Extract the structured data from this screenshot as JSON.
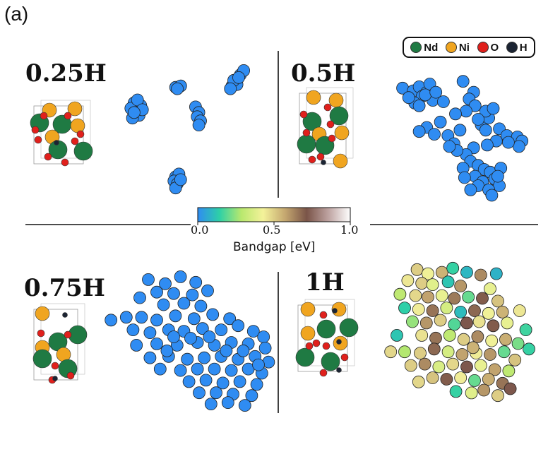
{
  "panel_label": "(a)",
  "legend": [
    {
      "label": "Nd",
      "color": "#1f7a43",
      "icon": "nd-atom-icon"
    },
    {
      "label": "Ni",
      "color": "#f0a520",
      "icon": "ni-atom-icon"
    },
    {
      "label": "O",
      "color": "#e0201c",
      "icon": "o-atom-icon"
    },
    {
      "label": "H",
      "color": "#1b2433",
      "icon": "h-atom-icon"
    }
  ],
  "colorbar": {
    "label": "Bandgap [eV]",
    "ticks": [
      "0.0",
      "0.5",
      "1.0"
    ],
    "colormap": [
      "#2f8cf2",
      "#2ed0a6",
      "#b9e86e",
      "#f4f29a",
      "#c5a870",
      "#7a5448",
      "#bea3a1",
      "#ffffff"
    ]
  },
  "chart_data": [
    {
      "type": "scatter",
      "title": "0.25H",
      "xlabel": "",
      "ylabel": "",
      "xlim": [
        0,
        10
      ],
      "ylim": [
        0,
        10
      ],
      "grid": false,
      "color_value": "bandgap_eV",
      "points": [
        [
          8.1,
          9.3
        ],
        [
          7.8,
          8.8
        ],
        [
          7.6,
          8.5
        ],
        [
          7.9,
          8.6
        ],
        [
          7.7,
          8.9
        ],
        [
          8.3,
          9.6
        ],
        [
          7.5,
          8.3
        ],
        [
          8.0,
          9.1
        ],
        [
          4.2,
          8.4
        ],
        [
          4.5,
          8.5
        ],
        [
          4.3,
          8.3
        ],
        [
          1.7,
          7.3
        ],
        [
          1.9,
          7.0
        ],
        [
          2.1,
          7.1
        ],
        [
          1.5,
          6.9
        ],
        [
          1.8,
          6.6
        ],
        [
          2.0,
          6.4
        ],
        [
          1.6,
          6.2
        ],
        [
          1.9,
          7.5
        ],
        [
          2.2,
          6.8
        ],
        [
          1.7,
          6.6
        ],
        [
          5.4,
          7.0
        ],
        [
          5.6,
          6.6
        ],
        [
          5.5,
          6.3
        ],
        [
          5.7,
          6.0
        ],
        [
          5.6,
          5.7
        ],
        [
          4.2,
          2.0
        ],
        [
          4.4,
          2.2
        ],
        [
          4.1,
          1.7
        ],
        [
          4.3,
          1.5
        ],
        [
          4.2,
          1.2
        ],
        [
          4.5,
          1.8
        ]
      ],
      "bandgap": [
        0,
        0,
        0,
        0,
        0,
        0,
        0,
        0,
        0,
        0,
        0,
        0,
        0,
        0,
        0,
        0,
        0,
        0,
        0,
        0,
        0,
        0,
        0,
        0,
        0,
        0,
        0,
        0,
        0,
        0,
        0,
        0
      ]
    },
    {
      "type": "scatter",
      "title": "0.5H",
      "xlabel": "",
      "ylabel": "",
      "xlim": [
        0,
        10
      ],
      "ylim": [
        0,
        10
      ],
      "grid": false,
      "color_value": "bandgap_eV",
      "points": [
        [
          1.5,
          8.5
        ],
        [
          2.2,
          8.3
        ],
        [
          2.6,
          8.6
        ],
        [
          3.1,
          8.2
        ],
        [
          3.3,
          8.8
        ],
        [
          2.8,
          7.9
        ],
        [
          3.5,
          7.6
        ],
        [
          2.3,
          7.4
        ],
        [
          1.9,
          7.8
        ],
        [
          3.0,
          8.0
        ],
        [
          3.7,
          8.2
        ],
        [
          2.6,
          7.2
        ],
        [
          4.2,
          7.5
        ],
        [
          5.5,
          9.0
        ],
        [
          6.2,
          8.2
        ],
        [
          5.9,
          7.7
        ],
        [
          6.3,
          7.2
        ],
        [
          5.7,
          6.8
        ],
        [
          5.0,
          6.6
        ],
        [
          4.0,
          6.0
        ],
        [
          3.1,
          5.6
        ],
        [
          2.6,
          5.3
        ],
        [
          3.6,
          5.1
        ],
        [
          4.5,
          5.0
        ],
        [
          5.3,
          5.4
        ],
        [
          6.7,
          5.8
        ],
        [
          7.2,
          6.3
        ],
        [
          7.0,
          5.4
        ],
        [
          7.9,
          5.5
        ],
        [
          8.4,
          5.0
        ],
        [
          9.1,
          4.9
        ],
        [
          9.4,
          4.6
        ],
        [
          9.2,
          4.2
        ],
        [
          7.7,
          4.6
        ],
        [
          7.1,
          4.3
        ],
        [
          6.2,
          4.1
        ],
        [
          5.7,
          3.6
        ],
        [
          6.0,
          3.1
        ],
        [
          6.5,
          2.8
        ],
        [
          5.5,
          2.6
        ],
        [
          6.9,
          2.5
        ],
        [
          7.3,
          2.3
        ],
        [
          6.3,
          2.0
        ],
        [
          5.6,
          1.9
        ],
        [
          6.8,
          1.6
        ],
        [
          7.6,
          1.8
        ],
        [
          7.9,
          1.3
        ],
        [
          6.5,
          1.3
        ],
        [
          7.2,
          1.0
        ],
        [
          6.0,
          1.0
        ],
        [
          7.4,
          0.6
        ],
        [
          8.0,
          2.6
        ],
        [
          7.8,
          2.0
        ],
        [
          8.5,
          4.5
        ],
        [
          4.9,
          4.4
        ],
        [
          5.1,
          3.9
        ],
        [
          4.6,
          4.2
        ],
        [
          7.0,
          6.8
        ],
        [
          6.5,
          6.2
        ],
        [
          7.5,
          7.0
        ]
      ],
      "bandgap": [
        0,
        0,
        0,
        0,
        0,
        0,
        0,
        0,
        0,
        0,
        0,
        0,
        0,
        0,
        0,
        0,
        0,
        0,
        0,
        0,
        0,
        0,
        0,
        0,
        0,
        0,
        0,
        0,
        0,
        0,
        0,
        0,
        0,
        0,
        0,
        0,
        0,
        0,
        0,
        0,
        0,
        0,
        0,
        0,
        0,
        0,
        0,
        0,
        0,
        0,
        0,
        0,
        0,
        0,
        0,
        0,
        0,
        0,
        0,
        0
      ]
    },
    {
      "type": "scatter",
      "title": "0.75H",
      "xlabel": "",
      "ylabel": "",
      "xlim": [
        0,
        10
      ],
      "ylim": [
        0,
        10
      ],
      "grid": false,
      "color_value": "bandgap_eV",
      "points": [
        [
          2.5,
          9.3
        ],
        [
          3.5,
          9.0
        ],
        [
          4.4,
          9.5
        ],
        [
          5.3,
          9.1
        ],
        [
          3.0,
          8.4
        ],
        [
          4.0,
          8.3
        ],
        [
          5.1,
          8.2
        ],
        [
          6.0,
          8.5
        ],
        [
          2.0,
          8.0
        ],
        [
          4.6,
          7.6
        ],
        [
          5.6,
          7.4
        ],
        [
          3.4,
          7.5
        ],
        [
          0.3,
          6.4
        ],
        [
          1.2,
          6.6
        ],
        [
          2.1,
          6.6
        ],
        [
          3.0,
          6.4
        ],
        [
          4.1,
          6.7
        ],
        [
          5.2,
          6.5
        ],
        [
          6.3,
          6.8
        ],
        [
          7.3,
          6.5
        ],
        [
          1.6,
          5.7
        ],
        [
          2.6,
          5.5
        ],
        [
          3.7,
          5.7
        ],
        [
          4.6,
          5.6
        ],
        [
          5.7,
          5.8
        ],
        [
          6.8,
          5.7
        ],
        [
          7.8,
          6.0
        ],
        [
          8.7,
          5.6
        ],
        [
          9.3,
          5.2
        ],
        [
          1.8,
          4.6
        ],
        [
          3.0,
          4.7
        ],
        [
          4.2,
          4.6
        ],
        [
          5.4,
          4.8
        ],
        [
          6.4,
          4.6
        ],
        [
          7.4,
          4.8
        ],
        [
          8.4,
          4.7
        ],
        [
          9.4,
          4.4
        ],
        [
          2.6,
          3.7
        ],
        [
          3.7,
          3.8
        ],
        [
          4.8,
          3.6
        ],
        [
          5.8,
          3.7
        ],
        [
          6.8,
          3.8
        ],
        [
          7.8,
          3.6
        ],
        [
          8.8,
          3.8
        ],
        [
          9.6,
          3.4
        ],
        [
          3.2,
          2.9
        ],
        [
          4.4,
          2.8
        ],
        [
          5.4,
          2.9
        ],
        [
          6.4,
          2.9
        ],
        [
          7.4,
          2.8
        ],
        [
          8.4,
          2.9
        ],
        [
          9.2,
          2.6
        ],
        [
          4.9,
          2.0
        ],
        [
          5.9,
          2.1
        ],
        [
          6.9,
          1.9
        ],
        [
          7.9,
          2.0
        ],
        [
          8.9,
          1.8
        ],
        [
          5.5,
          1.2
        ],
        [
          6.5,
          1.2
        ],
        [
          7.5,
          1.1
        ],
        [
          8.6,
          1.0
        ],
        [
          6.2,
          0.4
        ],
        [
          7.2,
          0.5
        ],
        [
          8.2,
          0.3
        ],
        [
          3.6,
          4.2
        ],
        [
          6.1,
          5.2
        ],
        [
          7.1,
          4.2
        ],
        [
          8.1,
          4.2
        ],
        [
          9.0,
          3.2
        ],
        [
          4.0,
          5.2
        ],
        [
          5.0,
          5.1
        ]
      ],
      "bandgap": [
        0,
        0,
        0,
        0,
        0,
        0,
        0,
        0,
        0,
        0,
        0,
        0,
        0,
        0,
        0,
        0,
        0,
        0,
        0,
        0,
        0,
        0,
        0,
        0,
        0,
        0,
        0,
        0,
        0,
        0,
        0,
        0,
        0,
        0,
        0,
        0,
        0,
        0,
        0,
        0,
        0,
        0,
        0,
        0,
        0,
        0,
        0,
        0,
        0,
        0,
        0,
        0,
        0,
        0,
        0,
        0,
        0,
        0,
        0,
        0,
        0,
        0,
        0,
        0,
        0,
        0,
        0,
        0,
        0,
        0,
        0
      ]
    },
    {
      "type": "scatter",
      "title": "1H",
      "xlabel": "",
      "ylabel": "",
      "xlim": [
        0,
        10
      ],
      "ylim": [
        0,
        10
      ],
      "grid": false,
      "color_value": "bandgap_eV",
      "points": [
        [
          2.3,
          9.6
        ],
        [
          3.0,
          9.3
        ],
        [
          3.9,
          9.4
        ],
        [
          4.6,
          9.7
        ],
        [
          5.5,
          9.4
        ],
        [
          6.4,
          9.2
        ],
        [
          1.7,
          8.8
        ],
        [
          2.6,
          8.6
        ],
        [
          3.3,
          8.5
        ],
        [
          4.3,
          8.7
        ],
        [
          5.1,
          8.4
        ],
        [
          7.0,
          8.2
        ],
        [
          1.2,
          7.8
        ],
        [
          2.2,
          7.7
        ],
        [
          3.0,
          7.6
        ],
        [
          3.9,
          7.7
        ],
        [
          4.7,
          7.5
        ],
        [
          5.6,
          7.6
        ],
        [
          6.5,
          7.5
        ],
        [
          7.5,
          7.3
        ],
        [
          1.5,
          6.8
        ],
        [
          2.4,
          6.7
        ],
        [
          3.3,
          6.6
        ],
        [
          4.2,
          6.8
        ],
        [
          5.1,
          6.5
        ],
        [
          6.0,
          6.6
        ],
        [
          6.9,
          6.4
        ],
        [
          7.8,
          6.5
        ],
        [
          2.0,
          5.8
        ],
        [
          2.9,
          5.7
        ],
        [
          3.8,
          5.9
        ],
        [
          4.7,
          5.6
        ],
        [
          5.5,
          5.7
        ],
        [
          6.3,
          5.8
        ],
        [
          7.2,
          5.5
        ],
        [
          8.1,
          5.7
        ],
        [
          9.3,
          5.2
        ],
        [
          1.0,
          4.8
        ],
        [
          2.6,
          4.8
        ],
        [
          3.5,
          4.6
        ],
        [
          4.4,
          4.8
        ],
        [
          5.3,
          4.5
        ],
        [
          6.2,
          4.7
        ],
        [
          7.1,
          4.4
        ],
        [
          8.0,
          4.5
        ],
        [
          8.8,
          4.2
        ],
        [
          0.6,
          3.6
        ],
        [
          1.5,
          3.6
        ],
        [
          2.5,
          3.5
        ],
        [
          3.4,
          3.8
        ],
        [
          4.3,
          3.6
        ],
        [
          5.2,
          3.4
        ],
        [
          6.1,
          3.5
        ],
        [
          7.0,
          3.4
        ],
        [
          7.9,
          3.6
        ],
        [
          8.6,
          3.0
        ],
        [
          1.9,
          2.6
        ],
        [
          2.8,
          2.7
        ],
        [
          3.7,
          2.5
        ],
        [
          4.6,
          2.7
        ],
        [
          5.5,
          2.5
        ],
        [
          6.4,
          2.6
        ],
        [
          7.3,
          2.3
        ],
        [
          8.2,
          2.2
        ],
        [
          3.3,
          1.7
        ],
        [
          4.2,
          1.6
        ],
        [
          5.1,
          1.7
        ],
        [
          6.0,
          1.5
        ],
        [
          6.9,
          1.6
        ],
        [
          7.8,
          1.3
        ],
        [
          2.4,
          1.4
        ],
        [
          4.8,
          0.7
        ],
        [
          5.8,
          0.6
        ],
        [
          6.6,
          0.8
        ],
        [
          7.5,
          0.4
        ],
        [
          8.3,
          0.9
        ],
        [
          9.5,
          3.8
        ],
        [
          8.9,
          6.6
        ],
        [
          7.4,
          9.3
        ],
        [
          5.9,
          3.9
        ]
      ],
      "bandgap": [
        0.5,
        0.42,
        0.55,
        0.15,
        0.09,
        0.62,
        0.45,
        0.5,
        0.38,
        0.12,
        0.6,
        0.4,
        0.3,
        0.48,
        0.58,
        0.4,
        0.65,
        0.2,
        0.7,
        0.52,
        0.14,
        0.44,
        0.66,
        0.35,
        0.1,
        0.68,
        0.42,
        0.55,
        0.25,
        0.6,
        0.5,
        0.18,
        0.72,
        0.46,
        0.7,
        0.4,
        0.16,
        0.12,
        0.46,
        0.66,
        0.3,
        0.5,
        0.62,
        0.42,
        0.56,
        0.22,
        0.48,
        0.28,
        0.5,
        0.68,
        0.35,
        0.58,
        0.44,
        0.6,
        0.2,
        0.52,
        0.5,
        0.62,
        0.36,
        0.48,
        0.72,
        0.4,
        0.58,
        0.3,
        0.52,
        0.7,
        0.44,
        0.2,
        0.56,
        0.66,
        0.48,
        0.15,
        0.38,
        0.6,
        0.5,
        0.72,
        0.15,
        0.45,
        0.08,
        0.55
      ]
    }
  ]
}
